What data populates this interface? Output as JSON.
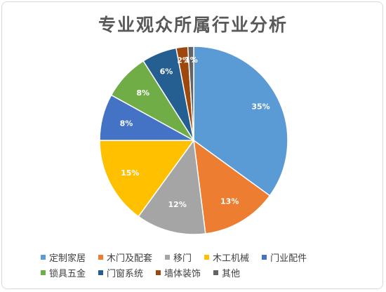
{
  "chart_data": {
    "type": "pie",
    "title": "专业观众所属行业分析",
    "categories": [
      "定制家居",
      "木门及配套",
      "移门",
      "木工机械",
      "门业配件",
      "锁具五金",
      "门窗系统",
      "墙体装饰",
      "其他"
    ],
    "values": [
      35,
      13,
      12,
      15,
      8,
      8,
      6,
      2,
      1
    ],
    "labels": [
      "35%",
      "13%",
      "12%",
      "15%",
      "8%",
      "8%",
      "6%",
      "2%",
      "1%"
    ],
    "colors": [
      "#5B9BD5",
      "#ED7D31",
      "#A5A5A5",
      "#FFC000",
      "#4472C4",
      "#70AD47",
      "#255E91",
      "#9E480E",
      "#636363"
    ],
    "legend_position": "bottom"
  }
}
